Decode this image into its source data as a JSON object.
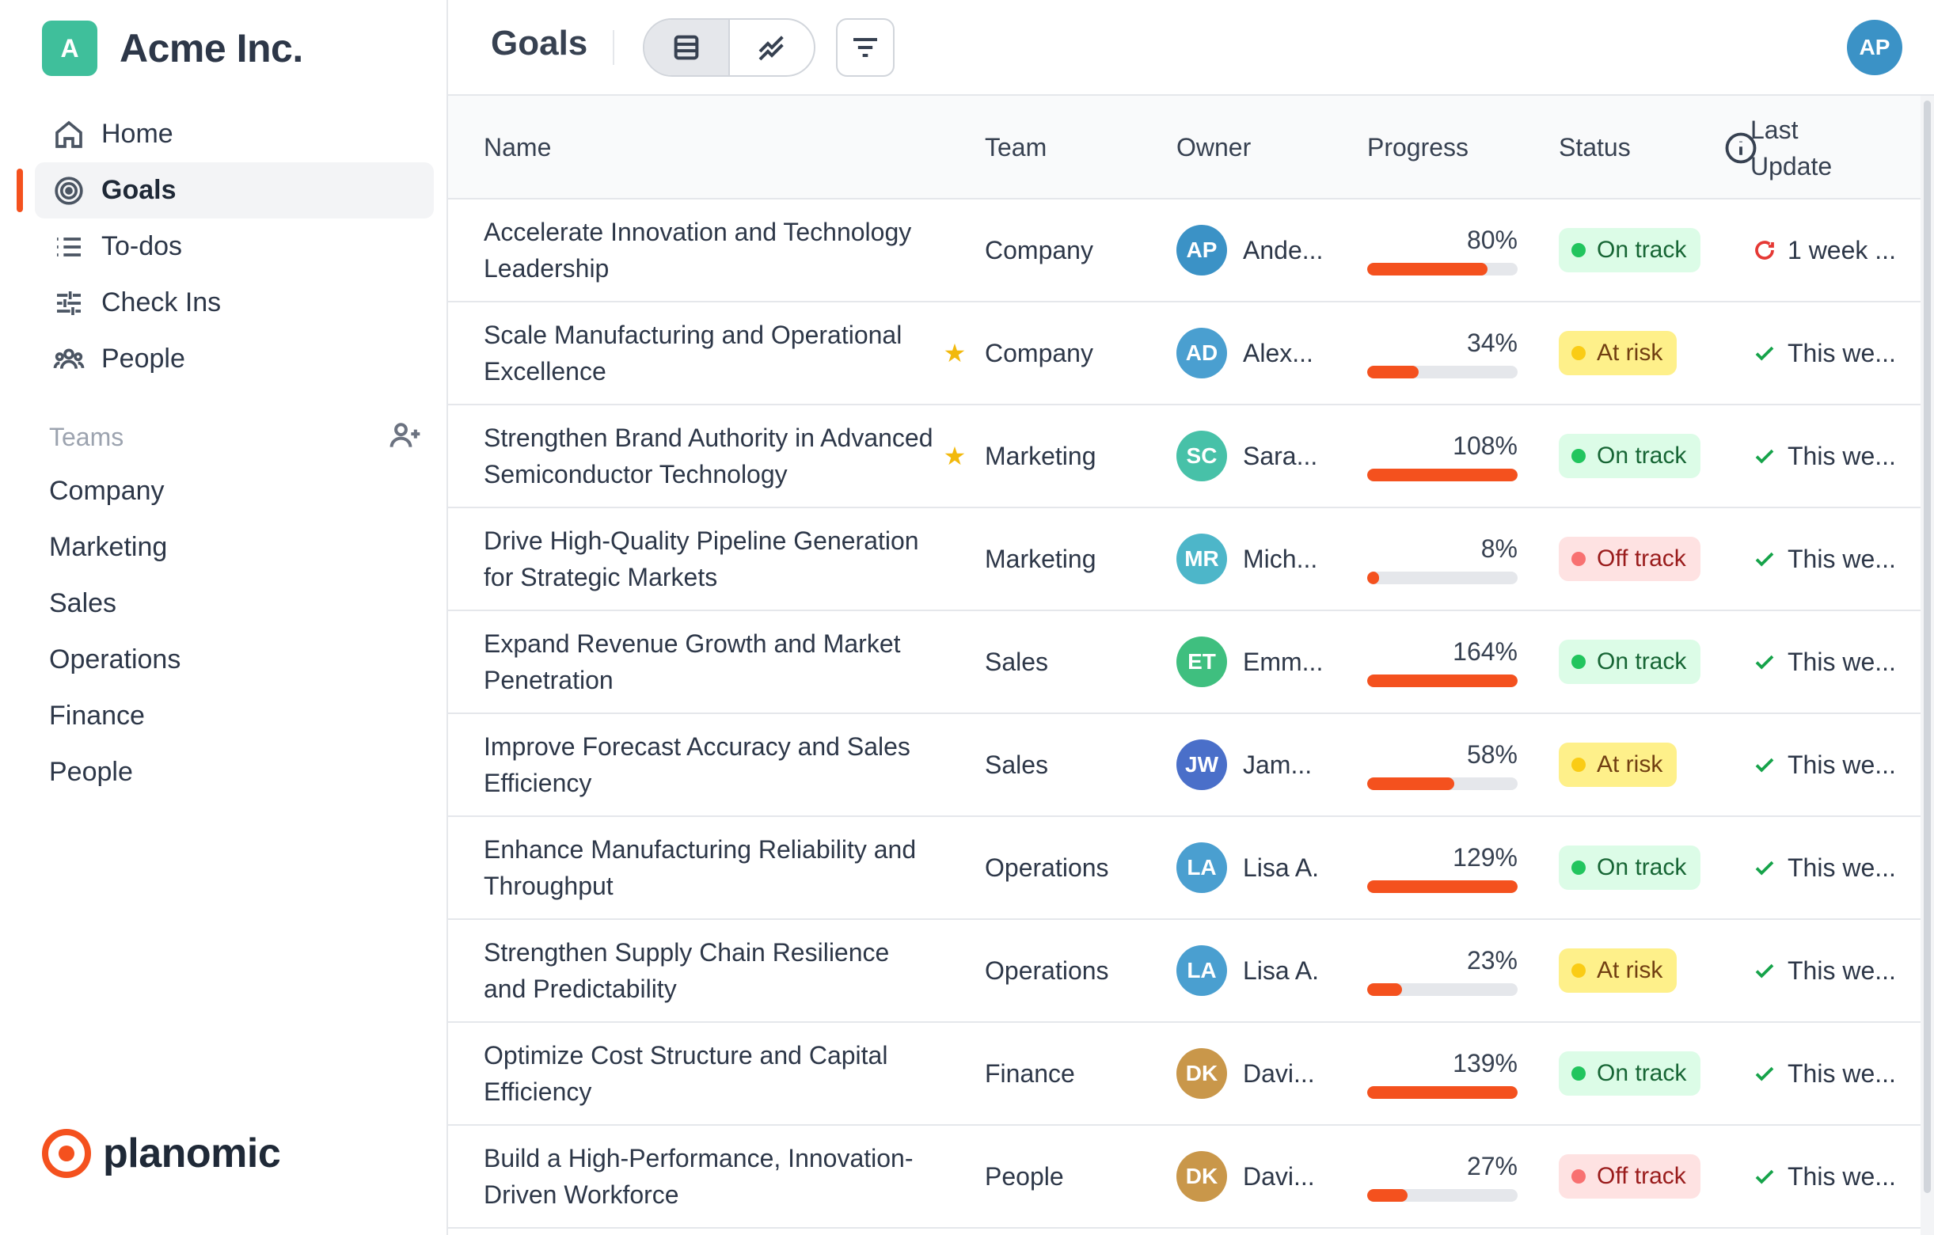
{
  "colors": {
    "accent": "#f4511e",
    "brand_logo": "#3fbf9b",
    "on_track": "#22c55e",
    "at_risk": "#facc15",
    "off_track": "#f87171"
  },
  "brand": {
    "logo_letter": "A",
    "name": "Acme Inc."
  },
  "nav": [
    {
      "label": "Home",
      "icon": "home-icon",
      "active": false
    },
    {
      "label": "Goals",
      "icon": "target-icon",
      "active": true
    },
    {
      "label": "To-dos",
      "icon": "list-icon",
      "active": false
    },
    {
      "label": "Check Ins",
      "icon": "sliders-icon",
      "active": false
    },
    {
      "label": "People",
      "icon": "people-icon",
      "active": false
    }
  ],
  "teams": {
    "label": "Teams",
    "items": [
      "Company",
      "Marketing",
      "Sales",
      "Operations",
      "Finance",
      "People"
    ]
  },
  "footer": {
    "name": "planomic"
  },
  "header": {
    "title": "Goals",
    "user_initials": "AP"
  },
  "table": {
    "columns": {
      "name": "Name",
      "team": "Team",
      "owner": "Owner",
      "progress": "Progress",
      "status": "Status",
      "last_update": "Last Update"
    },
    "rows": [
      {
        "name": "Accelerate Innovation and Technology Leadership",
        "starred": false,
        "team": "Company",
        "owner_initials": "AP",
        "owner_name": "Ande...",
        "owner_color": "#3b92c6",
        "progress": 80,
        "progress_label": "80%",
        "status": "On track",
        "status_kind": "on",
        "update": "1 week ...",
        "update_kind": "stale"
      },
      {
        "name": "Scale Manufacturing and Operational Excellence",
        "starred": true,
        "team": "Company",
        "owner_initials": "AD",
        "owner_name": "Alex...",
        "owner_color": "#4a9fd0",
        "progress": 34,
        "progress_label": "34%",
        "status": "At risk",
        "status_kind": "risk",
        "update": "This we...",
        "update_kind": "ok"
      },
      {
        "name": "Strengthen Brand Authority in Advanced Semiconductor Technology",
        "starred": true,
        "team": "Marketing",
        "owner_initials": "SC",
        "owner_name": "Sara...",
        "owner_color": "#47c1a8",
        "progress": 108,
        "progress_label": "108%",
        "status": "On track",
        "status_kind": "on",
        "update": "This we...",
        "update_kind": "ok"
      },
      {
        "name": "Drive High-Quality Pipeline Generation for Strategic Markets",
        "starred": false,
        "team": "Marketing",
        "owner_initials": "MR",
        "owner_name": "Mich...",
        "owner_color": "#4db6c9",
        "progress": 8,
        "progress_label": "8%",
        "status": "Off track",
        "status_kind": "off",
        "update": "This we...",
        "update_kind": "ok"
      },
      {
        "name": "Expand Revenue Growth and Market Penetration",
        "starred": false,
        "team": "Sales",
        "owner_initials": "ET",
        "owner_name": "Emm...",
        "owner_color": "#3fbf7f",
        "progress": 164,
        "progress_label": "164%",
        "status": "On track",
        "status_kind": "on",
        "update": "This we...",
        "update_kind": "ok"
      },
      {
        "name": "Improve Forecast Accuracy and Sales Efficiency",
        "starred": false,
        "team": "Sales",
        "owner_initials": "JW",
        "owner_name": "Jam...",
        "owner_color": "#4a6fc9",
        "progress": 58,
        "progress_label": "58%",
        "status": "At risk",
        "status_kind": "risk",
        "update": "This we...",
        "update_kind": "ok"
      },
      {
        "name": "Enhance Manufacturing Reliability and Throughput",
        "starred": false,
        "team": "Operations",
        "owner_initials": "LA",
        "owner_name": "Lisa A.",
        "owner_color": "#4a9fd0",
        "progress": 129,
        "progress_label": "129%",
        "status": "On track",
        "status_kind": "on",
        "update": "This we...",
        "update_kind": "ok"
      },
      {
        "name": "Strengthen Supply Chain Resilience and Predictability",
        "starred": false,
        "team": "Operations",
        "owner_initials": "LA",
        "owner_name": "Lisa A.",
        "owner_color": "#4a9fd0",
        "progress": 23,
        "progress_label": "23%",
        "status": "At risk",
        "status_kind": "risk",
        "update": "This we...",
        "update_kind": "ok"
      },
      {
        "name": "Optimize Cost Structure and Capital Efficiency",
        "starred": false,
        "team": "Finance",
        "owner_initials": "DK",
        "owner_name": "Davi...",
        "owner_color": "#c9974a",
        "progress": 139,
        "progress_label": "139%",
        "status": "On track",
        "status_kind": "on",
        "update": "This we...",
        "update_kind": "ok"
      },
      {
        "name": "Build a High-Performance, Innovation-Driven Workforce",
        "starred": false,
        "team": "People",
        "owner_initials": "DK",
        "owner_name": "Davi...",
        "owner_color": "#c9974a",
        "progress": 27,
        "progress_label": "27%",
        "status": "Off track",
        "status_kind": "off",
        "update": "This we...",
        "update_kind": "ok"
      }
    ]
  }
}
